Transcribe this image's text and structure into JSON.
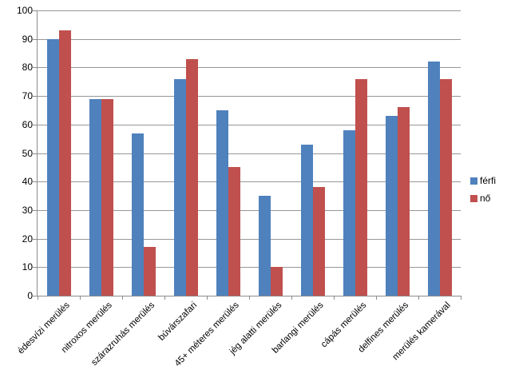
{
  "chart_data": {
    "type": "bar",
    "categories": [
      "édesvízi merülés",
      "nitroxos merülés",
      "szárazruhás merülés",
      "búvárszafari",
      "45+ méteres merülés",
      "jég alatti merülés",
      "barlangi merülés",
      "cápás merülés",
      "delfines merülés",
      "merülés kamerával"
    ],
    "series": [
      {
        "name": "férfi",
        "color": "#4F81BD",
        "values": [
          90,
          69,
          57,
          76,
          65,
          35,
          53,
          58,
          63,
          82
        ]
      },
      {
        "name": "nő",
        "color": "#C0504D",
        "values": [
          93,
          69,
          17,
          83,
          45,
          10,
          38,
          76,
          66,
          76
        ]
      }
    ],
    "y_ticks": [
      0,
      10,
      20,
      30,
      40,
      50,
      60,
      70,
      80,
      90,
      100
    ],
    "ylim": [
      0,
      100
    ],
    "grid": true,
    "legend_position": "right",
    "legend_labels": [
      "férfi",
      "nő"
    ]
  }
}
